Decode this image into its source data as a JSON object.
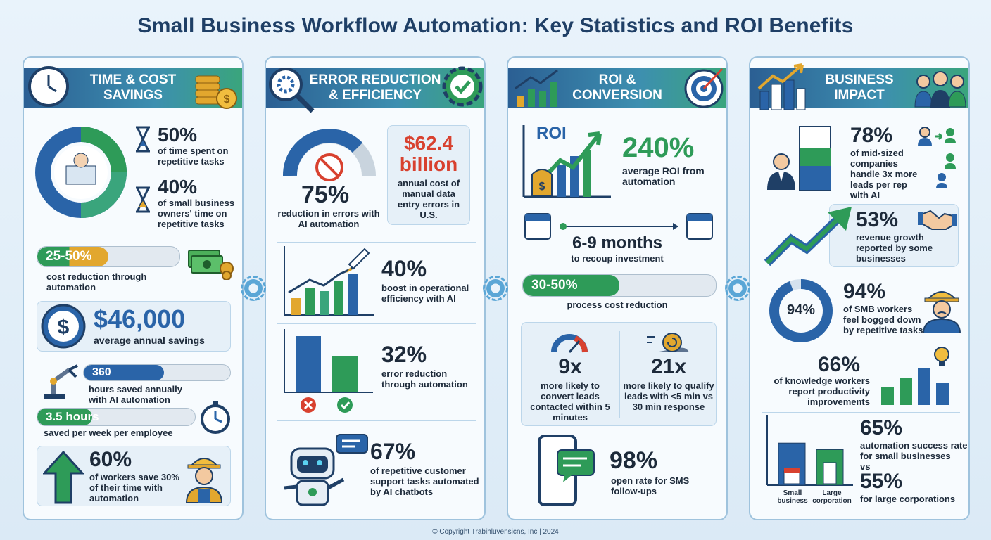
{
  "title": "Small Business Workflow Automation: Key Statistics and ROI Benefits",
  "footer": "© Copyright Trabihluvensicns, Inc | 2024",
  "colors": {
    "navy": "#1f3f66",
    "green": "#2e9b58",
    "blue": "#2a64a8",
    "gold": "#e2a72e",
    "red": "#d8412f"
  },
  "col1": {
    "header_line1": "TIME & COST",
    "header_line2": "SAVINGS",
    "stat1_value": "50%",
    "stat1_text": "of time spent on repetitive tasks",
    "stat2_value": "40%",
    "stat2_text": "of small business owners' time on repetitive tasks",
    "bar1_value": "25-50%",
    "bar1_text": "cost reduction through automation",
    "bar1_fill": 0.5,
    "savings_value": "$46,000",
    "savings_text": "average annual savings",
    "bar2_value": "360",
    "bar2_text": "hours saved annually with AI automation",
    "bar2_fill": 0.55,
    "bar3_value": "3.5 hours",
    "bar3_text": "saved per week per employee",
    "bar3_fill": 0.35,
    "workers_value": "60%",
    "workers_text": "of workers save 30% of their time with automation"
  },
  "col2": {
    "header_line1": "ERROR REDUCTION",
    "header_line2": "& EFFICIENCY",
    "gauge_value": "75%",
    "gauge_text": "reduction in errors with AI automation",
    "cost_value": "$62.4 billion",
    "cost_text": "annual cost of manual data entry errors in U.S.",
    "boost_value": "40%",
    "boost_text": "boost in operational efficiency with AI",
    "error_value": "32%",
    "error_text": "error reduction through automation",
    "chatbot_value": "67%",
    "chatbot_text": "of repetitive customer support tasks automated by AI chatbots"
  },
  "col3": {
    "header_line1": "ROI &",
    "header_line2": "CONVERSION",
    "roi_label": "ROI",
    "roi_value": "240%",
    "roi_text": "average ROI from automation",
    "months_value": "6-9 months",
    "months_text": "to recoup investment",
    "bar_value": "30-50%",
    "bar_text": "process cost reduction",
    "bar_fill": 0.5,
    "conv1_value": "9x",
    "conv1_text": "more likely to convert leads contacted within 5 minutes",
    "conv2_value": "21x",
    "conv2_text": "more likely to qualify leads with <5 min vs 30 min response",
    "sms_value": "98%",
    "sms_text": "open rate for SMS follow-ups"
  },
  "col4": {
    "header_line1": "BUSINESS",
    "header_line2": "IMPACT",
    "leads_value": "78%",
    "leads_text": "of mid-sized companies handle 3x more leads per rep with AI",
    "growth_value": "53%",
    "growth_text": "revenue growth reported by some businesses",
    "bogged_value": "94%",
    "bogged_text": "of SMB workers feel bogged down by repetitive tasks",
    "donut_label": "94%",
    "donut_fill": 0.94,
    "knowledge_value": "66%",
    "knowledge_text": "of knowledge workers report productivity improvements",
    "success_small_value": "65%",
    "success_small_text": "automation success rate for small businesses",
    "vs_text": "vs",
    "success_large_value": "55%",
    "success_large_text": "for large corporations",
    "bar_small_label": "Small business",
    "bar_large_label": "Large corporation",
    "bar_small_value": 65,
    "bar_large_value": 55
  }
}
